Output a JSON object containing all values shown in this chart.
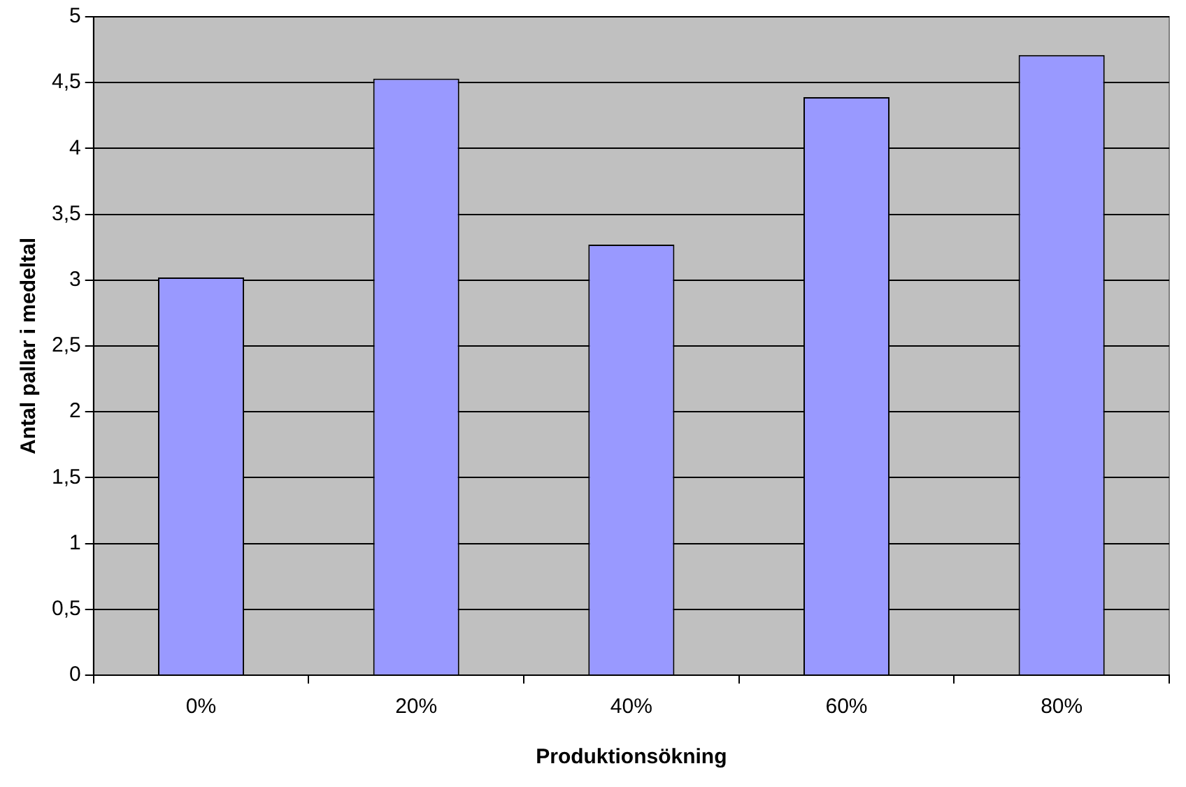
{
  "chart_data": {
    "type": "bar",
    "xlabel": "Produktionsökning",
    "ylabel": "Antal pallar i medeltal",
    "categories": [
      "0%",
      "20%",
      "40%",
      "60%",
      "80%"
    ],
    "values": [
      3.02,
      4.53,
      3.27,
      4.39,
      4.71
    ],
    "color": "#9999ff",
    "ylim": [
      0,
      5
    ],
    "yticks": [
      0,
      {
        "value": 0.5,
        "label": "0,5"
      },
      1,
      {
        "value": 1.5,
        "label": "1,5"
      },
      2,
      {
        "value": 2.5,
        "label": "2,5"
      },
      3,
      {
        "value": 3.5,
        "label": "3,5"
      },
      4,
      {
        "value": 4.5,
        "label": "4,5"
      },
      5
    ],
    "grid": "y",
    "legend": false
  }
}
